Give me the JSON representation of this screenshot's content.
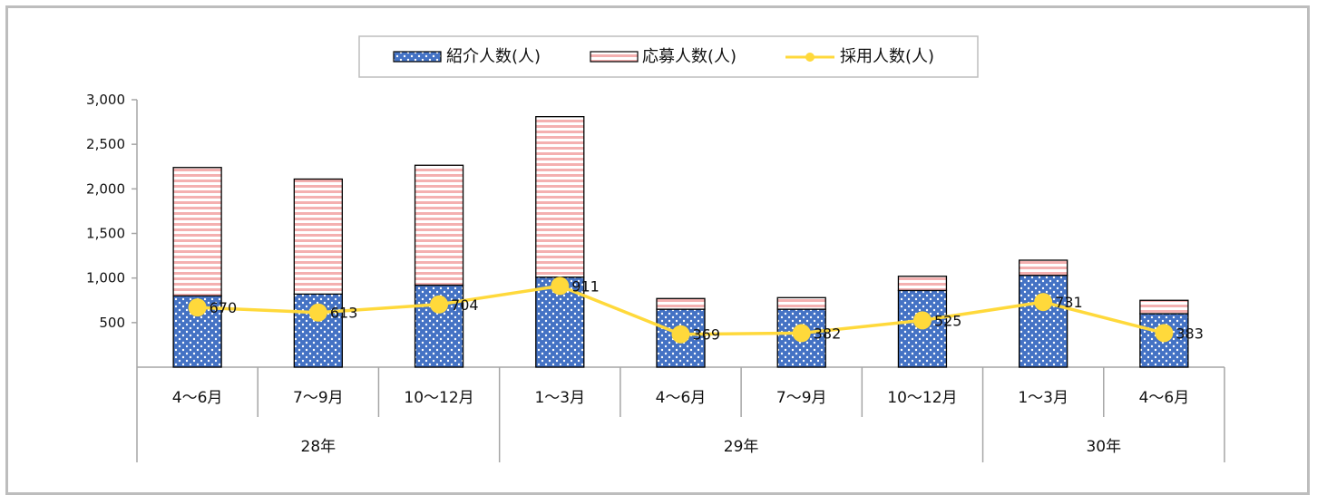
{
  "chart_data": {
    "type": "bar",
    "stacked": true,
    "categories": [
      "4〜6月",
      "7〜9月",
      "10〜12月",
      "1〜3月",
      "4〜6月",
      "7〜9月",
      "10〜12月",
      "1〜3月",
      "4〜6月"
    ],
    "groups": [
      {
        "label": "28年",
        "span": 3
      },
      {
        "label": "29年",
        "span": 4
      },
      {
        "label": "30年",
        "span": 2
      }
    ],
    "series": [
      {
        "name": "紹介人数(人)",
        "type": "bar",
        "color": "#4472c4",
        "pattern": "white-dots",
        "values": [
          800,
          820,
          920,
          1010,
          650,
          650,
          860,
          1030,
          600
        ]
      },
      {
        "name": "応募人数(人)",
        "type": "bar",
        "color": "#f4b6b6",
        "pattern": "horizontal-stripes",
        "values": [
          1440,
          1290,
          1345,
          1800,
          120,
          130,
          160,
          170,
          150
        ]
      },
      {
        "name": "採用人数(人)",
        "type": "line",
        "color": "#ffd93b",
        "values": [
          670,
          613,
          704,
          911,
          369,
          382,
          525,
          731,
          383
        ],
        "labels": [
          "670",
          "613",
          "704",
          "911",
          "369",
          "382",
          "525",
          "731",
          "383"
        ]
      }
    ],
    "y_ticks": [
      "500",
      "1,000",
      "1,500",
      "2,000",
      "2,500",
      "3,000"
    ],
    "ylim": [
      0,
      3000
    ],
    "legend_position": "top-center",
    "grid": false
  }
}
